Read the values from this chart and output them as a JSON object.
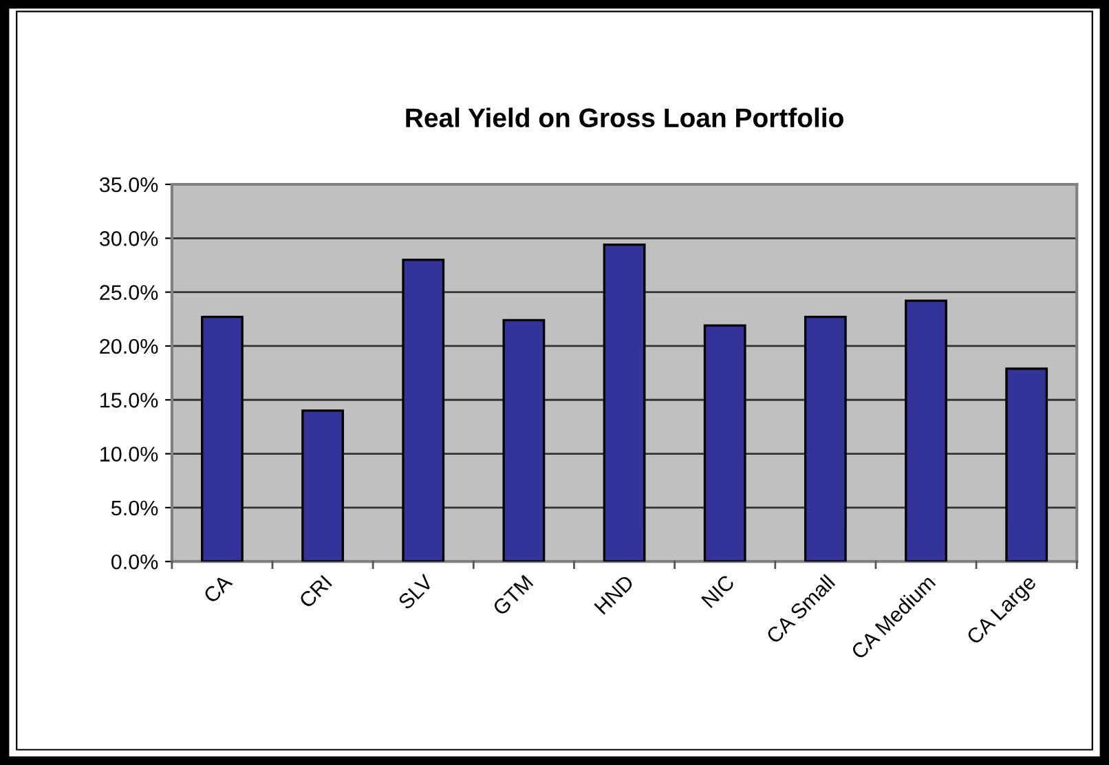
{
  "chart_data": {
    "type": "bar",
    "title": "Real Yield on Gross Loan Portfolio",
    "categories": [
      "CA",
      "CRI",
      "SLV",
      "GTM",
      "HND",
      "NIC",
      "CA Small",
      "CA Medium",
      "CA Large"
    ],
    "values": [
      22.7,
      14.0,
      28.0,
      22.4,
      29.4,
      21.9,
      22.7,
      24.2,
      17.9
    ],
    "color": "#333399",
    "ylim": [
      0,
      35
    ],
    "yticks": [
      {
        "value": 0,
        "label": "0.0%"
      },
      {
        "value": 5,
        "label": "5.0%"
      },
      {
        "value": 10,
        "label": "10.0%"
      },
      {
        "value": 15,
        "label": "15.0%"
      },
      {
        "value": 20,
        "label": "20.0%"
      },
      {
        "value": 25,
        "label": "25.0%"
      },
      {
        "value": 30,
        "label": "30.0%"
      },
      {
        "value": 35,
        "label": "35.0%"
      }
    ],
    "grid": "y"
  }
}
